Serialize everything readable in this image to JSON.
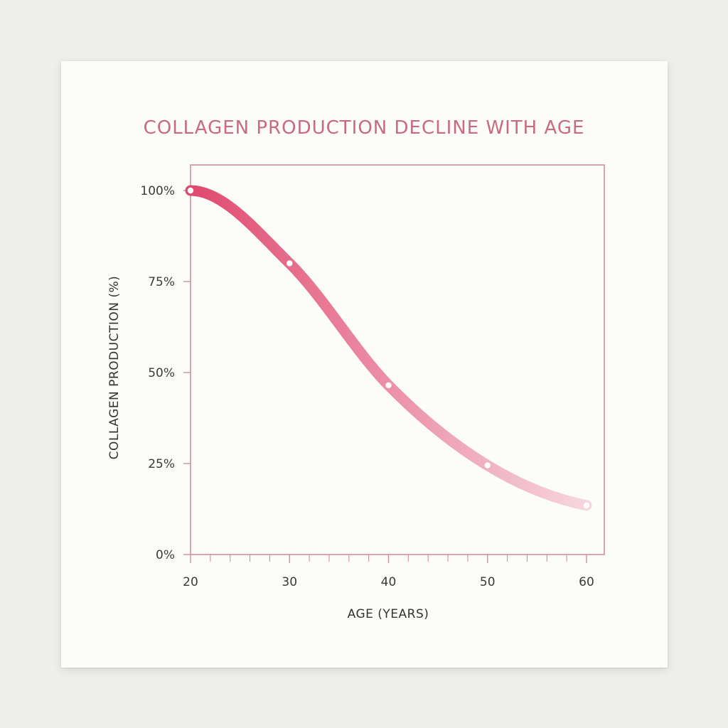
{
  "chart_data": {
    "type": "line",
    "title": "COLLAGEN PRODUCTION DECLINE WITH AGE",
    "xlabel": "AGE (YEARS)",
    "ylabel": "COLLAGEN PRODUCTION (%)",
    "xlim": [
      20,
      60
    ],
    "ylim": [
      0,
      100
    ],
    "x_ticks": [
      20,
      30,
      40,
      50,
      60
    ],
    "x_tick_labels": [
      "20",
      "30",
      "40",
      "50",
      "60"
    ],
    "y_ticks": [
      0,
      25,
      50,
      75,
      100
    ],
    "y_tick_labels": [
      "0%",
      "25%",
      "50%",
      "75%",
      "100%"
    ],
    "x_minor_step": 2,
    "grid": false,
    "series": [
      {
        "x": [
          20,
          30,
          40,
          50,
          60
        ],
        "values": [
          100,
          80,
          46.5,
          24.5,
          13.5
        ]
      }
    ],
    "colors": {
      "line_start": "#e0496f",
      "line_end": "#f6d6df",
      "frame": "#cf8f9f",
      "title": "#c96a82",
      "marker": "#ffffff"
    }
  }
}
